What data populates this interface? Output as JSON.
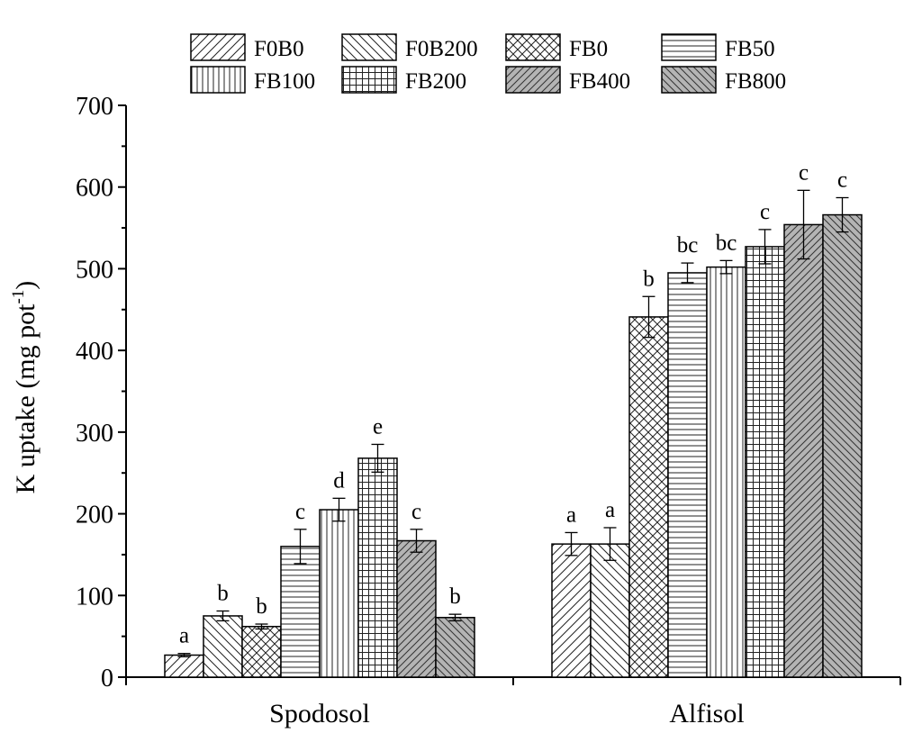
{
  "chart_data": {
    "type": "bar",
    "categories": [
      "Spodosol",
      "Alfisol"
    ],
    "ylabel": "K uptake (mg pot",
    "ylabel_sup": "-1",
    "ylabel_close": ")",
    "ylim": [
      0,
      700
    ],
    "yticks": [
      0,
      100,
      200,
      300,
      400,
      500,
      600,
      700
    ],
    "ytick_labels": [
      "0",
      "100",
      "200",
      "300",
      "400",
      "500",
      "600",
      "700"
    ],
    "legend_position": "top",
    "series": [
      {
        "name": "F0B0",
        "pattern": "diag-up",
        "values": [
          27,
          163
        ],
        "errors": [
          2,
          14
        ],
        "labels": [
          "a",
          "a"
        ]
      },
      {
        "name": "F0B200",
        "pattern": "diag-down",
        "values": [
          75,
          163
        ],
        "errors": [
          6,
          20
        ],
        "labels": [
          "b",
          "a"
        ]
      },
      {
        "name": "FB0",
        "pattern": "crosshatch",
        "values": [
          62,
          441
        ],
        "errors": [
          3,
          25
        ],
        "labels": [
          "b",
          "b"
        ]
      },
      {
        "name": "FB50",
        "pattern": "horizontal",
        "values": [
          160,
          495
        ],
        "errors": [
          21,
          12
        ],
        "labels": [
          "c",
          "bc"
        ]
      },
      {
        "name": "FB100",
        "pattern": "vertical",
        "values": [
          205,
          502
        ],
        "errors": [
          14,
          8
        ],
        "labels": [
          "d",
          "bc"
        ]
      },
      {
        "name": "FB200",
        "pattern": "grid",
        "values": [
          268,
          527
        ],
        "errors": [
          17,
          21
        ],
        "labels": [
          "e",
          "c"
        ]
      },
      {
        "name": "FB400",
        "pattern": "diag-up-gray",
        "values": [
          167,
          554
        ],
        "errors": [
          14,
          42
        ],
        "labels": [
          "c",
          "c"
        ]
      },
      {
        "name": "FB800",
        "pattern": "diag-down-gray",
        "values": [
          73,
          566
        ],
        "errors": [
          4,
          21
        ],
        "labels": [
          "b",
          "c"
        ]
      }
    ]
  }
}
